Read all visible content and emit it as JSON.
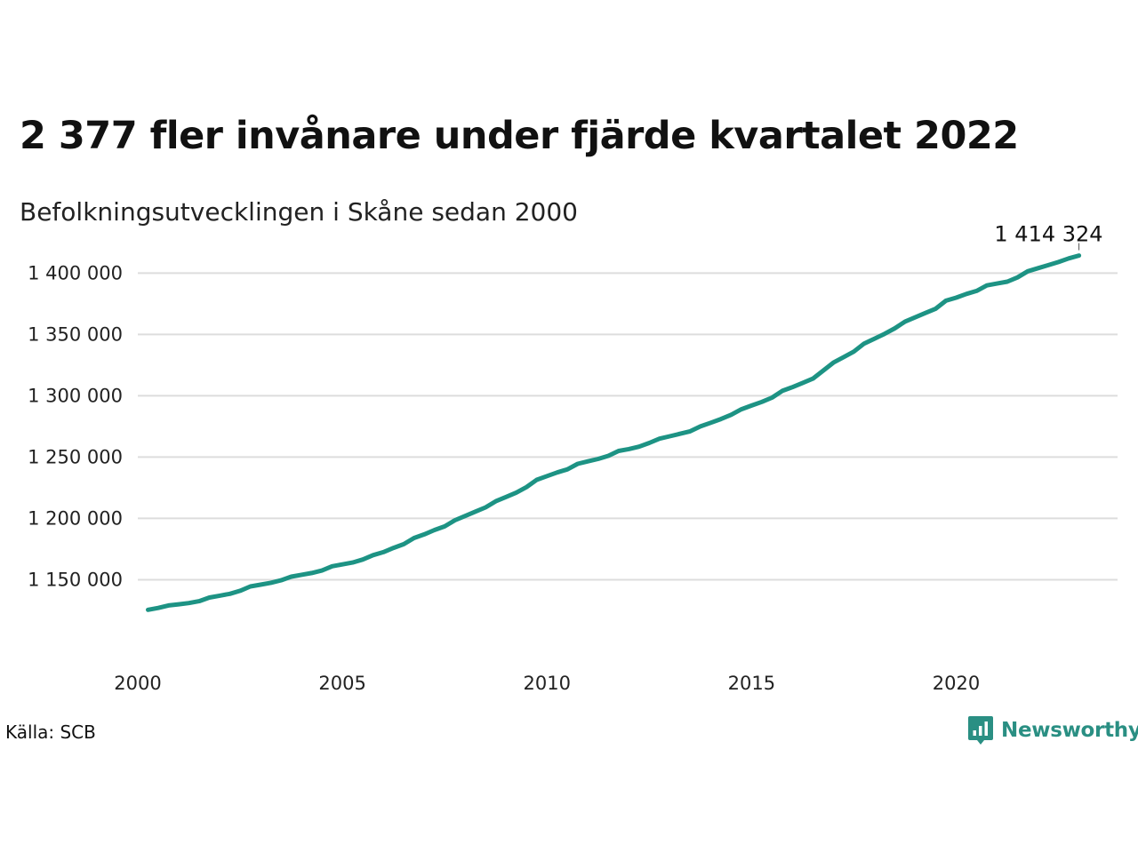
{
  "header": {
    "title": "2 377 fler invånare under fjärde kvartalet 2022",
    "subtitle": "Befolkningsutvecklingen i Skåne sedan 2000"
  },
  "footer": {
    "source": "Källa: SCB",
    "brand": "Newsworthy"
  },
  "colors": {
    "line": "#1d9384",
    "grid": "#dddddd",
    "brand": "#2a8f83"
  },
  "chart_data": {
    "type": "line",
    "title": "2 377 fler invånare under fjärde kvartalet 2022",
    "subtitle": "Befolkningsutvecklingen i Skåne sedan 2000",
    "xlabel": "",
    "ylabel": "",
    "xlim": [
      2000,
      2023.9
    ],
    "ylim": [
      1117000,
      1422000
    ],
    "grid": true,
    "x_ticks": [
      2000,
      2005,
      2010,
      2015,
      2020
    ],
    "x_tick_labels": [
      "2000",
      "2005",
      "2010",
      "2015",
      "2020"
    ],
    "y_ticks": [
      1150000,
      1200000,
      1250000,
      1300000,
      1350000,
      1400000
    ],
    "y_tick_labels": [
      "1 150 000",
      "1 200 000",
      "1 250 000",
      "1 300 000",
      "1 350 000",
      "1 400 000"
    ],
    "end_label": "1 414 324",
    "series": [
      {
        "x": [
          2000.25,
          2000.5,
          2000.75,
          2001.0,
          2001.25,
          2001.5,
          2001.75,
          2002.0,
          2002.25,
          2002.5,
          2002.75,
          2003.0,
          2003.25,
          2003.5,
          2003.75,
          2004.0,
          2004.25,
          2004.5,
          2004.75,
          2005.0,
          2005.25,
          2005.5,
          2005.75,
          2006.0,
          2006.25,
          2006.5,
          2006.75,
          2007.0,
          2007.25,
          2007.5,
          2007.75,
          2008.0,
          2008.25,
          2008.5,
          2008.75,
          2009.0,
          2009.25,
          2009.5,
          2009.75,
          2010.0,
          2010.25,
          2010.5,
          2010.75,
          2011.0,
          2011.25,
          2011.5,
          2011.75,
          2012.0,
          2012.25,
          2012.5,
          2012.75,
          2013.0,
          2013.25,
          2013.5,
          2013.75,
          2014.0,
          2014.25,
          2014.5,
          2014.75,
          2015.0,
          2015.25,
          2015.5,
          2015.75,
          2016.0,
          2016.25,
          2016.5,
          2016.75,
          2017.0,
          2017.25,
          2017.5,
          2017.75,
          2018.0,
          2018.25,
          2018.5,
          2018.75,
          2019.0,
          2019.25,
          2019.5,
          2019.75,
          2020.0,
          2020.25,
          2020.5,
          2020.75,
          2021.0,
          2021.25,
          2021.5,
          2021.75,
          2022.0,
          2022.25,
          2022.5,
          2022.75,
          2023.0
        ],
        "values": [
          1125500,
          1127000,
          1129000,
          1130000,
          1131000,
          1132500,
          1135500,
          1137000,
          1138500,
          1141000,
          1144500,
          1146000,
          1147500,
          1149500,
          1152500,
          1154000,
          1155500,
          1157500,
          1161000,
          1162500,
          1164000,
          1166500,
          1170000,
          1172500,
          1176000,
          1179000,
          1184000,
          1187000,
          1190500,
          1193500,
          1198500,
          1202000,
          1205500,
          1209000,
          1214000,
          1217500,
          1221000,
          1225500,
          1231500,
          1234500,
          1237500,
          1240000,
          1244500,
          1246500,
          1248500,
          1251000,
          1255000,
          1256500,
          1258500,
          1261500,
          1265000,
          1267000,
          1269000,
          1271000,
          1275000,
          1278000,
          1281000,
          1284500,
          1289000,
          1292000,
          1295000,
          1298500,
          1304000,
          1307000,
          1310500,
          1314000,
          1320500,
          1327000,
          1331500,
          1336000,
          1342500,
          1346500,
          1350500,
          1355000,
          1360500,
          1364000,
          1367500,
          1371000,
          1377500,
          1380000,
          1383000,
          1385500,
          1390000,
          1391500,
          1393000,
          1396500,
          1401500,
          1404000,
          1406500,
          1409000,
          1412000,
          1414324
        ]
      }
    ]
  }
}
